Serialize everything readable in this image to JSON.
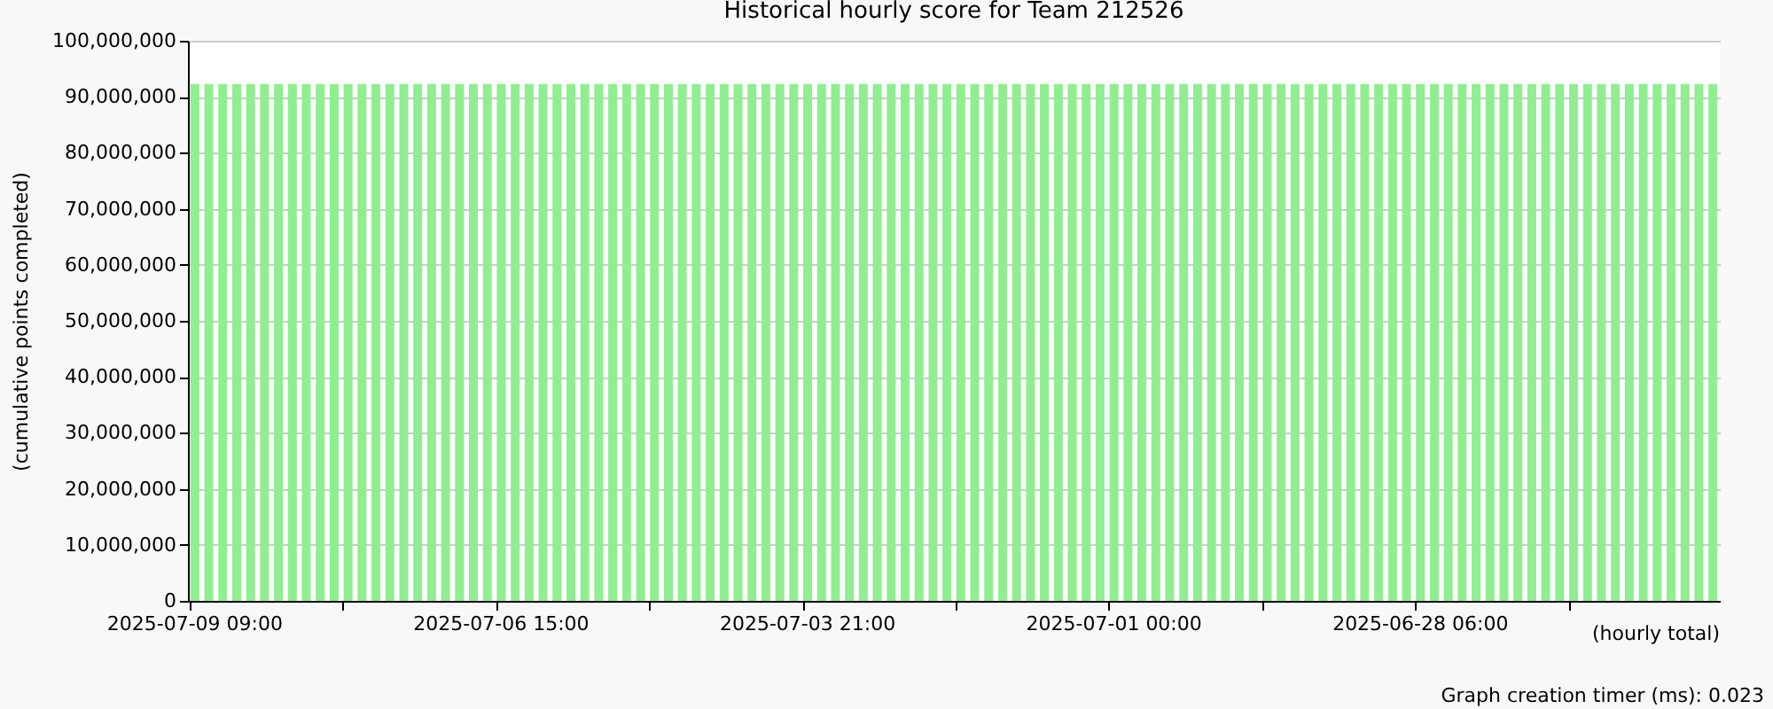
{
  "chart_data": {
    "type": "bar",
    "title": "Historical hourly score for Team 212526",
    "ylabel": "(cumulative points completed)",
    "annotations": [
      "(hourly total)",
      "Graph creation timer (ms): 0.023"
    ],
    "categories": [
      "2025-07-09 09:00",
      null,
      null,
      null,
      null,
      null,
      null,
      null,
      null,
      null,
      null,
      null,
      null,
      null,
      null,
      null,
      null,
      null,
      null,
      null,
      null,
      null,
      "2025-07-06 15:00",
      null,
      null,
      null,
      null,
      null,
      null,
      null,
      null,
      null,
      null,
      null,
      null,
      null,
      null,
      null,
      null,
      null,
      null,
      null,
      null,
      null,
      "2025-07-03 21:00",
      null,
      null,
      null,
      null,
      null,
      null,
      null,
      null,
      null,
      null,
      null,
      null,
      null,
      null,
      null,
      null,
      null,
      null,
      null,
      null,
      null,
      "2025-07-01 00:00",
      null,
      null,
      null,
      null,
      null,
      null,
      null,
      null,
      null,
      null,
      null,
      null,
      null,
      null,
      null,
      null,
      null,
      null,
      null,
      null,
      null,
      "2025-06-28 06:00",
      null,
      null,
      null,
      null,
      null,
      null,
      null,
      null,
      null,
      null,
      null,
      null,
      null,
      null,
      null,
      null,
      null,
      null,
      null,
      null,
      null
    ],
    "values": [
      92300000,
      92300000,
      92300000,
      92300000,
      92300000,
      92300000,
      92300000,
      92300000,
      92300000,
      92300000,
      92300000,
      92300000,
      92300000,
      92300000,
      92300000,
      92300000,
      92300000,
      92300000,
      92300000,
      92300000,
      92300000,
      92300000,
      92300000,
      92300000,
      92300000,
      92300000,
      92300000,
      92300000,
      92300000,
      92300000,
      92300000,
      92300000,
      92300000,
      92300000,
      92300000,
      92300000,
      92300000,
      92300000,
      92300000,
      92300000,
      92300000,
      92300000,
      92300000,
      92300000,
      92300000,
      92300000,
      92300000,
      92300000,
      92300000,
      92300000,
      92300000,
      92300000,
      92300000,
      92300000,
      92300000,
      92300000,
      92300000,
      92300000,
      92300000,
      92300000,
      92300000,
      92300000,
      92300000,
      92300000,
      92300000,
      92300000,
      92300000,
      92300000,
      92300000,
      92300000,
      92300000,
      92300000,
      92300000,
      92300000,
      92300000,
      92300000,
      92300000,
      92300000,
      92300000,
      92300000,
      92300000,
      92300000,
      92300000,
      92300000,
      92300000,
      92300000,
      92300000,
      92300000,
      92300000,
      92300000,
      92300000,
      92300000,
      92300000,
      92300000,
      92300000,
      92300000,
      92300000,
      92300000,
      92300000,
      92300000,
      92300000,
      92300000,
      92300000,
      92300000,
      92300000,
      92300000,
      92300000,
      92300000,
      92300000,
      92300000
    ],
    "color": "#90ee90",
    "ylim": [
      0,
      100000000
    ],
    "yticks": [
      0,
      {
        "value": 10000000,
        "label": "10,000,000"
      },
      {
        "value": 20000000,
        "label": "20,000,000"
      },
      {
        "value": 30000000,
        "label": "30,000,000"
      },
      {
        "value": 40000000,
        "label": "40,000,000"
      },
      {
        "value": 50000000,
        "label": "50,000,000"
      },
      {
        "value": 60000000,
        "label": "60,000,000"
      },
      {
        "value": 70000000,
        "label": "70,000,000"
      },
      {
        "value": 80000000,
        "label": "80,000,000"
      },
      {
        "value": 90000000,
        "label": "90,000,000"
      },
      {
        "value": 100000000,
        "label": "100,000,000"
      }
    ],
    "grid": "y"
  }
}
